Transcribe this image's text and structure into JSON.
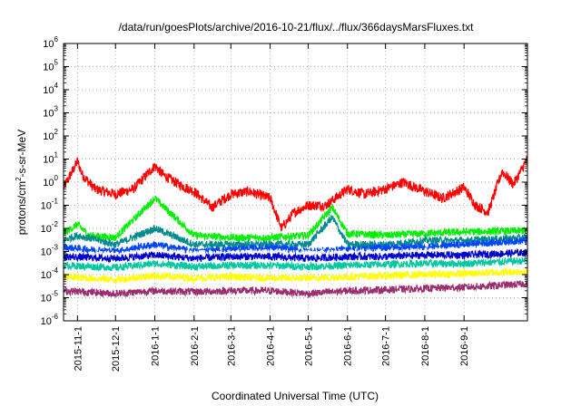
{
  "chart_data": {
    "type": "line",
    "title": "/data/run/goesPlots/archive/2016-10-21/flux/../flux/366daysMarsFluxes.txt",
    "xlabel": "Coordinated Universal Time (UTC)",
    "ylabel": "protons/cm²-s-sr-MeV",
    "y_scale": "log",
    "ylim": [
      1e-06,
      1000000.0
    ],
    "y_ticks": [
      {
        "value": 1e-06,
        "base": "10",
        "exp": "-6"
      },
      {
        "value": 1e-05,
        "base": "10",
        "exp": "-5"
      },
      {
        "value": 0.0001,
        "base": "10",
        "exp": "-4"
      },
      {
        "value": 0.001,
        "base": "10",
        "exp": "-3"
      },
      {
        "value": 0.01,
        "base": "10",
        "exp": "-2"
      },
      {
        "value": 0.1,
        "base": "10",
        "exp": "-1"
      },
      {
        "value": 1,
        "base": "10",
        "exp": "0"
      },
      {
        "value": 10,
        "base": "10",
        "exp": "1"
      },
      {
        "value": 100,
        "base": "10",
        "exp": "2"
      },
      {
        "value": 1000,
        "base": "10",
        "exp": "3"
      },
      {
        "value": 10000,
        "base": "10",
        "exp": "4"
      },
      {
        "value": 100000,
        "base": "10",
        "exp": "5"
      },
      {
        "value": 1000000,
        "base": "10",
        "exp": "6"
      }
    ],
    "xlim": [
      "2015-10-21",
      "2016-10-21"
    ],
    "x_ticks": [
      "2015-11-1",
      "2015-12-1",
      "2016-1-1",
      "2016-2-1",
      "2016-3-1",
      "2016-4-1",
      "2016-5-1",
      "2016-6-1",
      "2016-7-1",
      "2016-8-1",
      "2016-9-1"
    ],
    "grid": true,
    "series": [
      {
        "color": "#ff0000",
        "x": [
          "2015-10-21",
          "2015-10-28",
          "2015-11-01",
          "2015-11-05",
          "2015-11-15",
          "2015-12-01",
          "2015-12-15",
          "2016-01-01",
          "2016-01-08",
          "2016-01-20",
          "2016-02-01",
          "2016-02-15",
          "2016-03-01",
          "2016-03-15",
          "2016-04-01",
          "2016-04-10",
          "2016-04-20",
          "2016-05-01",
          "2016-05-15",
          "2016-06-01",
          "2016-06-15",
          "2016-07-01",
          "2016-07-15",
          "2016-08-01",
          "2016-08-15",
          "2016-09-01",
          "2016-09-10",
          "2016-09-20",
          "2016-10-01",
          "2016-10-10",
          "2016-10-21"
        ],
        "y": [
          0.6,
          3,
          8,
          2,
          0.5,
          0.3,
          0.5,
          5,
          2,
          0.8,
          0.4,
          0.08,
          0.3,
          0.4,
          0.2,
          0.01,
          0.05,
          0.1,
          0.1,
          0.5,
          0.3,
          0.5,
          1,
          0.4,
          0.2,
          0.6,
          0.1,
          0.05,
          3,
          0.8,
          10
        ]
      },
      {
        "color": "#00ee00",
        "x": [
          "2015-10-21",
          "2015-11-01",
          "2015-11-10",
          "2015-12-01",
          "2016-01-01",
          "2016-02-01",
          "2016-03-01",
          "2016-04-01",
          "2016-05-01",
          "2016-05-20",
          "2016-06-01",
          "2016-07-01",
          "2016-08-01",
          "2016-09-01",
          "2016-10-21"
        ],
        "y": [
          0.006,
          0.015,
          0.005,
          0.004,
          0.2,
          0.005,
          0.004,
          0.004,
          0.005,
          0.08,
          0.006,
          0.005,
          0.006,
          0.007,
          0.008
        ]
      },
      {
        "color": "#008b8b",
        "x": [
          "2015-10-21",
          "2015-11-01",
          "2015-12-01",
          "2016-01-01",
          "2016-02-01",
          "2016-03-01",
          "2016-04-01",
          "2016-05-01",
          "2016-05-20",
          "2016-06-01",
          "2016-07-01",
          "2016-08-01",
          "2016-09-01",
          "2016-10-21"
        ],
        "y": [
          0.003,
          0.005,
          0.002,
          0.01,
          0.002,
          0.002,
          0.002,
          0.002,
          0.03,
          0.002,
          0.002,
          0.003,
          0.003,
          0.004
        ]
      },
      {
        "color": "#0044ff",
        "x": [
          "2015-10-21",
          "2015-12-01",
          "2016-01-01",
          "2016-02-01",
          "2016-03-01",
          "2016-04-01",
          "2016-05-01",
          "2016-06-01",
          "2016-07-01",
          "2016-08-01",
          "2016-09-01",
          "2016-10-21"
        ],
        "y": [
          0.0015,
          0.001,
          0.002,
          0.001,
          0.0012,
          0.0015,
          0.001,
          0.0012,
          0.0015,
          0.0015,
          0.002,
          0.003
        ]
      },
      {
        "color": "#ffffff",
        "x": [
          "2015-10-21",
          "2015-12-01",
          "2016-01-01",
          "2016-02-01",
          "2016-03-01",
          "2016-04-01",
          "2016-05-01",
          "2016-06-01",
          "2016-07-01",
          "2016-08-01",
          "2016-09-01",
          "2016-10-21"
        ],
        "y": [
          0.0008,
          0.0007,
          0.001,
          0.0008,
          0.0008,
          0.0009,
          0.0008,
          0.0009,
          0.0009,
          0.001,
          0.0012,
          0.0015
        ]
      },
      {
        "color": "#0000cc",
        "x": [
          "2015-10-21",
          "2015-12-01",
          "2016-01-01",
          "2016-02-01",
          "2016-03-01",
          "2016-04-01",
          "2016-05-01",
          "2016-06-01",
          "2016-07-01",
          "2016-08-01",
          "2016-09-01",
          "2016-10-21"
        ],
        "y": [
          0.0006,
          0.0005,
          0.0007,
          0.0005,
          0.0006,
          0.0006,
          0.0005,
          0.0006,
          0.0006,
          0.0007,
          0.0007,
          0.0009
        ]
      },
      {
        "color": "#00c8a0",
        "x": [
          "2015-10-21",
          "2015-12-01",
          "2016-01-01",
          "2016-02-01",
          "2016-03-01",
          "2016-04-01",
          "2016-05-01",
          "2016-06-01",
          "2016-07-01",
          "2016-08-01",
          "2016-09-01",
          "2016-10-21"
        ],
        "y": [
          0.00025,
          0.0002,
          0.0003,
          0.00022,
          0.00025,
          0.00025,
          0.00022,
          0.00025,
          0.00028,
          0.0003,
          0.0003,
          0.0004
        ]
      },
      {
        "color": "#ffff00",
        "x": [
          "2015-10-21",
          "2015-12-01",
          "2016-01-01",
          "2016-02-01",
          "2016-03-01",
          "2016-04-01",
          "2016-05-01",
          "2016-06-01",
          "2016-07-01",
          "2016-08-01",
          "2016-09-01",
          "2016-10-21"
        ],
        "y": [
          8e-05,
          6e-05,
          9e-05,
          7e-05,
          8e-05,
          7e-05,
          7e-05,
          8e-05,
          9e-05,
          0.0001,
          0.00011,
          0.00014
        ]
      },
      {
        "color": "#9b2d6e",
        "x": [
          "2015-10-21",
          "2015-12-01",
          "2016-01-01",
          "2016-02-01",
          "2016-03-01",
          "2016-04-01",
          "2016-05-01",
          "2016-06-01",
          "2016-07-01",
          "2016-08-01",
          "2016-09-01",
          "2016-10-21"
        ],
        "y": [
          2e-05,
          1.5e-05,
          2e-05,
          1.8e-05,
          2e-05,
          2e-05,
          1.5e-05,
          2e-05,
          2.2e-05,
          2.5e-05,
          2.8e-05,
          4e-05
        ]
      }
    ]
  }
}
